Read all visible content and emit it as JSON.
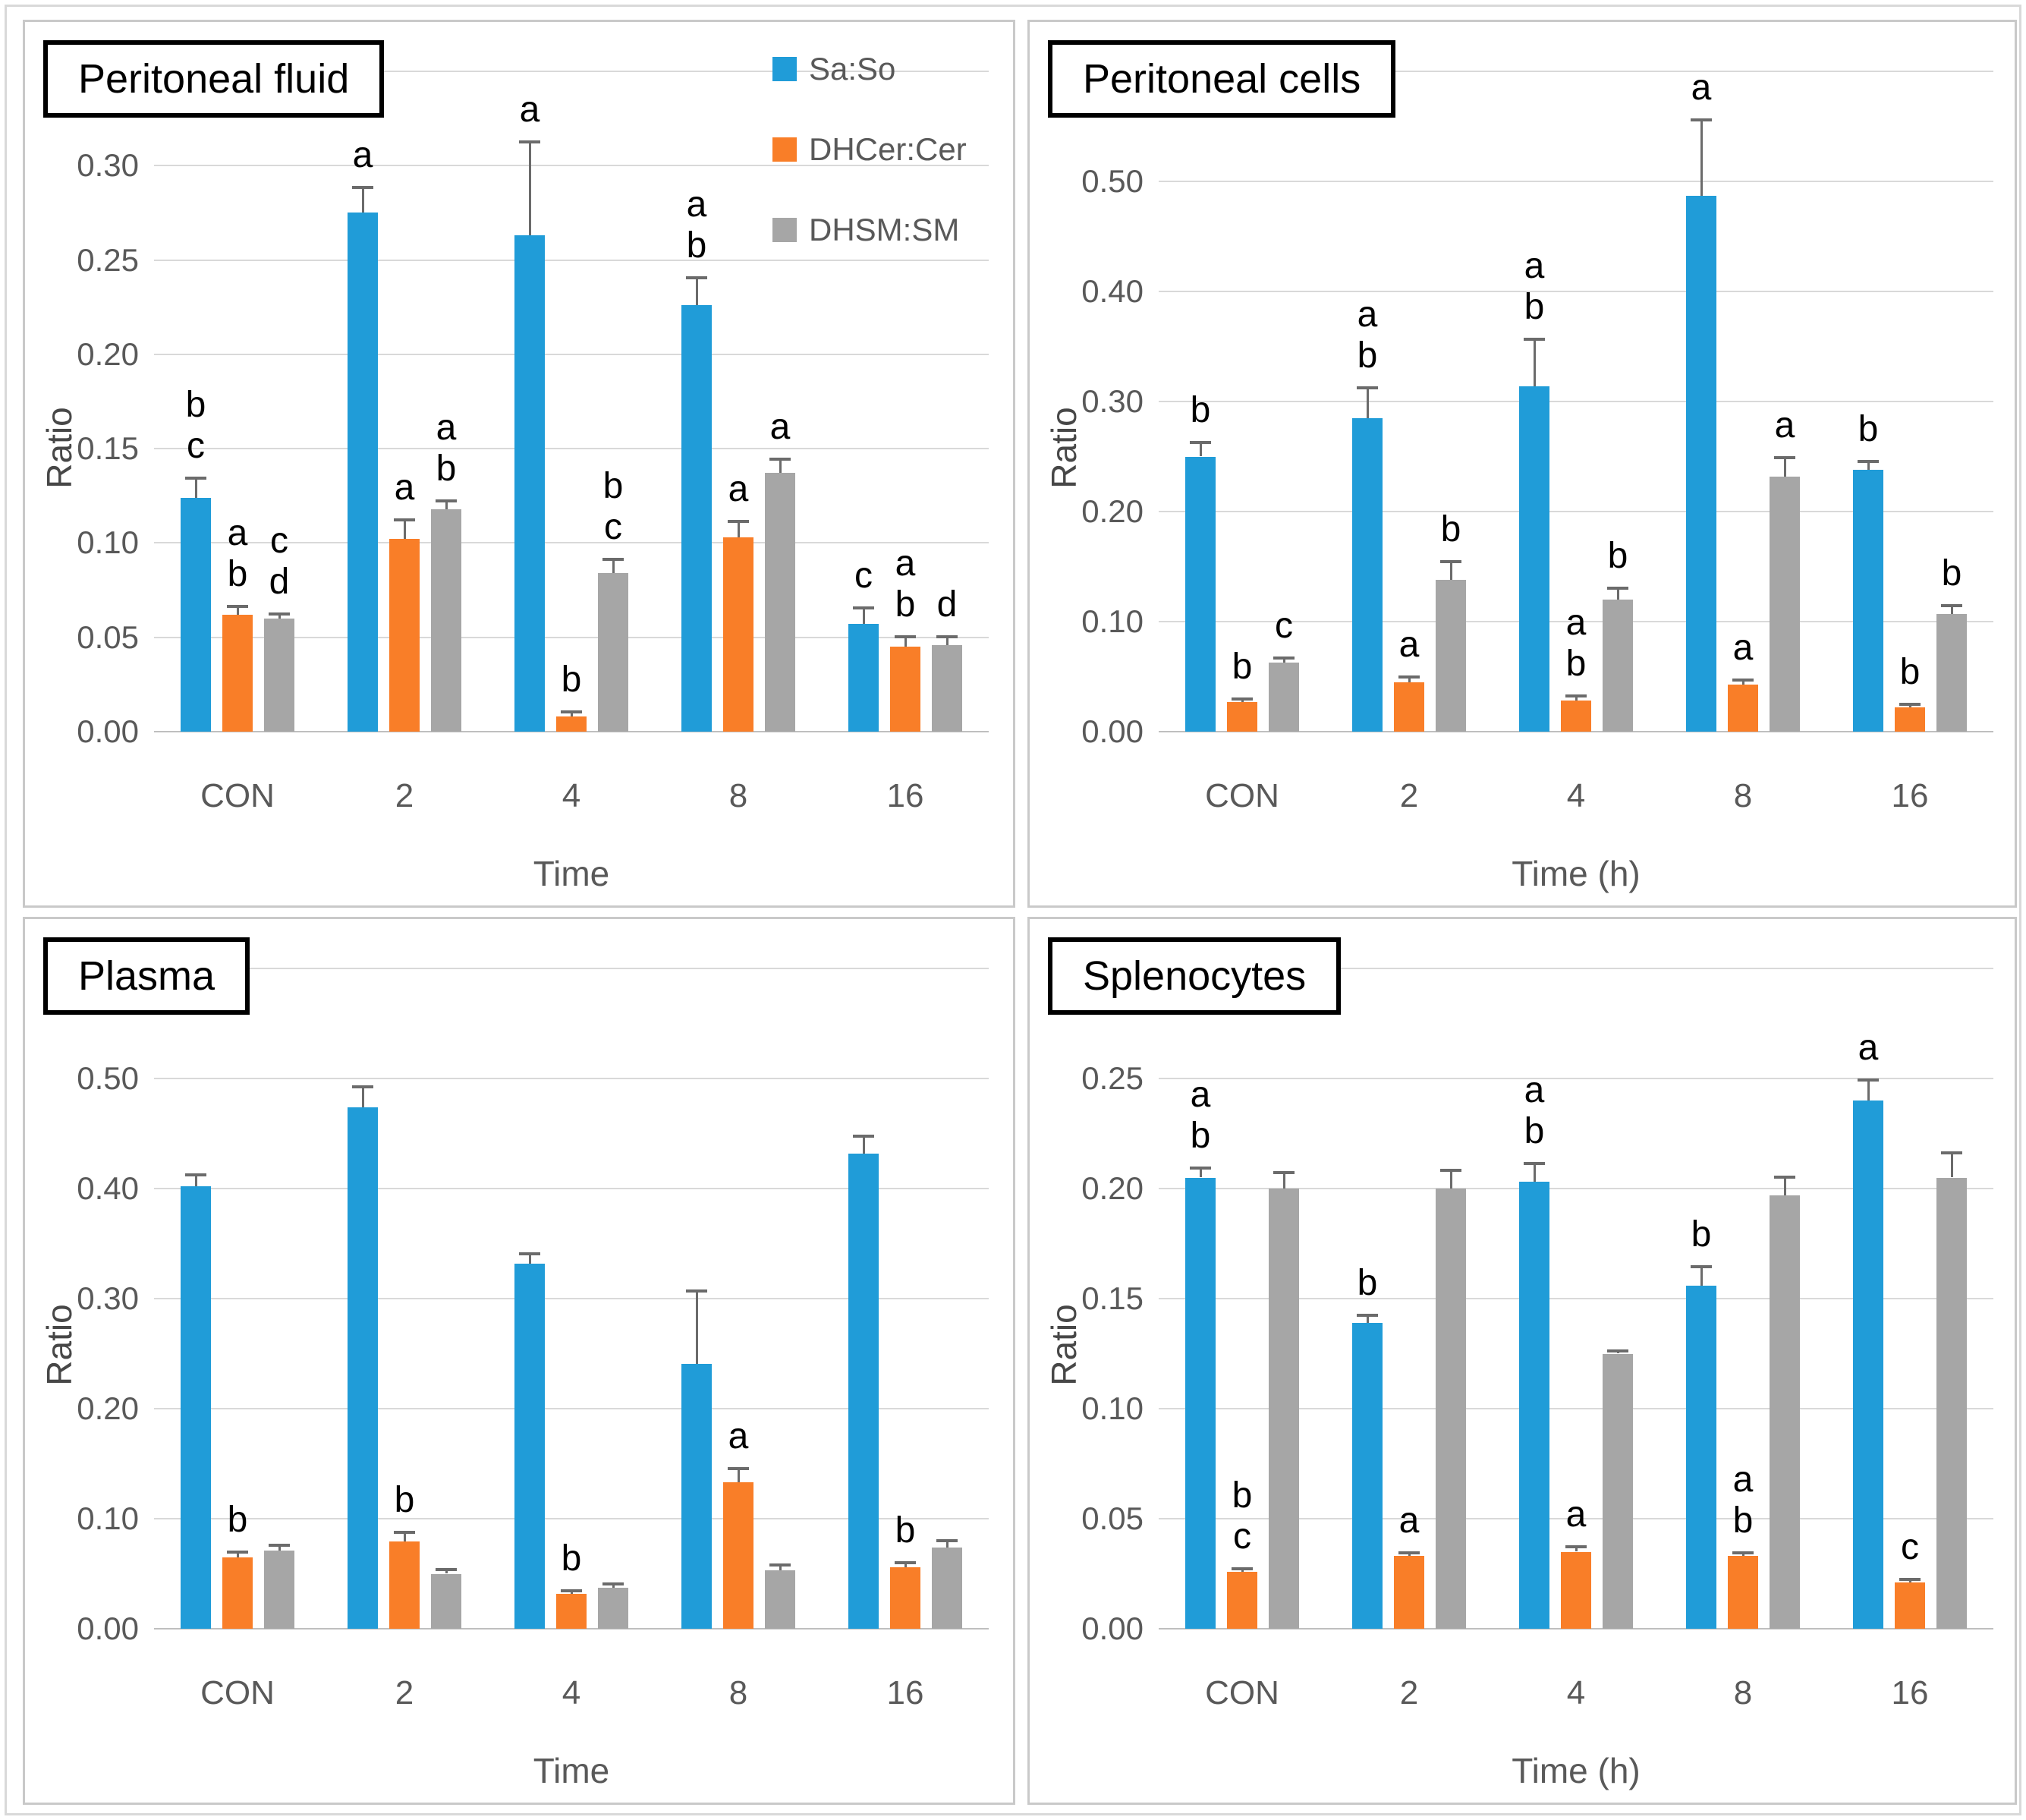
{
  "figure": {
    "legend": [
      {
        "label": "Sa:So",
        "color_key": "blue"
      },
      {
        "label": "DHCer:Cer",
        "color_key": "orange"
      },
      {
        "label": "DHSM:SM",
        "color_key": "gray"
      }
    ],
    "legend_position": "top-right-inside-first-panel"
  },
  "colors": {
    "blue": "#209CD8",
    "orange": "#F97E28",
    "gray": "#A6A6A6",
    "error_bar": "#6b6b6b",
    "gridline": "#d9d9d9",
    "axis_text": "#595959"
  },
  "chart_data": [
    {
      "type": "bar",
      "title": "Peritoneal fluid",
      "xlabel": "Time",
      "ylabel": "Ratio",
      "categories": [
        "CON",
        "2",
        "4",
        "8",
        "16"
      ],
      "ylim": [
        0,
        0.35
      ],
      "ytick_step": 0.05,
      "ymax_labeled": 0.3,
      "grid": true,
      "legend": true,
      "series": [
        {
          "name": "Sa:So",
          "color_key": "blue",
          "values": [
            0.124,
            0.275,
            0.263,
            0.226,
            0.057
          ],
          "errors": [
            0.01,
            0.013,
            0.049,
            0.014,
            0.008
          ],
          "letters": [
            "b c",
            "a",
            "a",
            "a b",
            "c"
          ]
        },
        {
          "name": "DHCer:Cer",
          "color_key": "orange",
          "values": [
            0.062,
            0.102,
            0.008,
            0.103,
            0.045
          ],
          "errors": [
            0.004,
            0.01,
            0.002,
            0.008,
            0.005
          ],
          "letters": [
            "a b",
            "a",
            "b",
            "a",
            "a b"
          ]
        },
        {
          "name": "DHSM:SM",
          "color_key": "gray",
          "values": [
            0.06,
            0.118,
            0.084,
            0.137,
            0.046
          ],
          "errors": [
            0.002,
            0.004,
            0.007,
            0.007,
            0.004
          ],
          "letters": [
            "c d",
            "a b",
            "b c",
            "a",
            "d"
          ]
        }
      ]
    },
    {
      "type": "bar",
      "title": "Peritoneal cells",
      "xlabel": "Time (h)",
      "ylabel": "Ratio",
      "categories": [
        "CON",
        "2",
        "4",
        "8",
        "16"
      ],
      "ylim": [
        0,
        0.6
      ],
      "ytick_step": 0.1,
      "ymax_labeled": 0.5,
      "grid": true,
      "legend": false,
      "series": [
        {
          "name": "Sa:So",
          "color_key": "blue",
          "values": [
            0.25,
            0.285,
            0.314,
            0.487,
            0.238
          ],
          "errors": [
            0.012,
            0.027,
            0.042,
            0.068,
            0.007
          ],
          "letters": [
            "b",
            "a b",
            "a b",
            "a",
            "b"
          ]
        },
        {
          "name": "DHCer:Cer",
          "color_key": "orange",
          "values": [
            0.027,
            0.045,
            0.028,
            0.043,
            0.022
          ],
          "errors": [
            0.002,
            0.004,
            0.004,
            0.003,
            0.002
          ],
          "letters": [
            "b",
            "a",
            "a b",
            "a",
            "b"
          ]
        },
        {
          "name": "DHSM:SM",
          "color_key": "gray",
          "values": [
            0.063,
            0.138,
            0.12,
            0.232,
            0.107
          ],
          "errors": [
            0.003,
            0.016,
            0.01,
            0.016,
            0.007
          ],
          "letters": [
            "c",
            "b",
            "b",
            "a",
            "b"
          ]
        }
      ]
    },
    {
      "type": "bar",
      "title": "Plasma",
      "xlabel": "Time",
      "ylabel": "Ratio",
      "categories": [
        "CON",
        "2",
        "4",
        "8",
        "16"
      ],
      "ylim": [
        0,
        0.6
      ],
      "ytick_step": 0.1,
      "ymax_labeled": 0.5,
      "grid": true,
      "legend": false,
      "series": [
        {
          "name": "Sa:So",
          "color_key": "blue",
          "values": [
            0.402,
            0.474,
            0.332,
            0.241,
            0.432
          ],
          "errors": [
            0.01,
            0.018,
            0.008,
            0.065,
            0.015
          ],
          "letters": [
            "",
            "",
            "",
            "",
            ""
          ]
        },
        {
          "name": "DHCer:Cer",
          "color_key": "orange",
          "values": [
            0.065,
            0.079,
            0.032,
            0.133,
            0.056
          ],
          "errors": [
            0.004,
            0.008,
            0.002,
            0.012,
            0.003
          ],
          "letters": [
            "b",
            "b",
            "b",
            "a",
            "b"
          ]
        },
        {
          "name": "DHSM:SM",
          "color_key": "gray",
          "values": [
            0.071,
            0.05,
            0.037,
            0.053,
            0.074
          ],
          "errors": [
            0.004,
            0.003,
            0.003,
            0.004,
            0.005
          ],
          "letters": [
            "",
            "",
            "",
            "",
            ""
          ]
        }
      ]
    },
    {
      "type": "bar",
      "title": "Splenocytes",
      "xlabel": "Time (h)",
      "ylabel": "Ratio",
      "categories": [
        "CON",
        "2",
        "4",
        "8",
        "16"
      ],
      "ylim": [
        0,
        0.3
      ],
      "ytick_step": 0.05,
      "ymax_labeled": 0.25,
      "grid": true,
      "legend": false,
      "series": [
        {
          "name": "Sa:So",
          "color_key": "blue",
          "values": [
            0.205,
            0.139,
            0.203,
            0.156,
            0.24
          ],
          "errors": [
            0.004,
            0.003,
            0.008,
            0.008,
            0.009
          ],
          "letters": [
            "a b",
            "b",
            "a b",
            "b",
            "a"
          ]
        },
        {
          "name": "DHCer:Cer",
          "color_key": "orange",
          "values": [
            0.026,
            0.033,
            0.035,
            0.033,
            0.021
          ],
          "errors": [
            0.001,
            0.001,
            0.002,
            0.001,
            0.001
          ],
          "letters": [
            "b c",
            "a",
            "a",
            "a b",
            "c"
          ]
        },
        {
          "name": "DHSM:SM",
          "color_key": "gray",
          "values": [
            0.2,
            0.2,
            0.125,
            0.197,
            0.205
          ],
          "errors": [
            0.007,
            0.008,
            0.001,
            0.008,
            0.011
          ],
          "letters": [
            "",
            "",
            "",
            "",
            ""
          ]
        }
      ]
    }
  ]
}
